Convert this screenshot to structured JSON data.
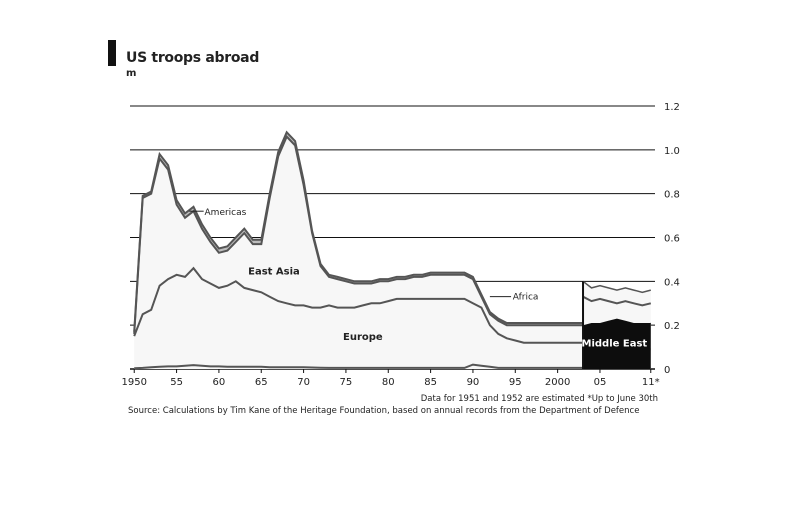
{
  "chart_data": {
    "type": "area",
    "title": "US troops abroad",
    "unit": "m",
    "x": [
      1950,
      1951,
      1952,
      1953,
      1954,
      1955,
      1956,
      1957,
      1958,
      1959,
      1960,
      1961,
      1962,
      1963,
      1964,
      1965,
      1966,
      1967,
      1968,
      1969,
      1970,
      1971,
      1972,
      1973,
      1974,
      1975,
      1976,
      1977,
      1978,
      1979,
      1980,
      1981,
      1982,
      1983,
      1984,
      1985,
      1986,
      1987,
      1988,
      1989,
      1990,
      1991,
      1992,
      1993,
      1994,
      1995,
      1996,
      1997,
      1998,
      1999,
      2000,
      2001,
      2002,
      2003,
      2004,
      2005,
      2006,
      2007,
      2008,
      2009,
      2010,
      2011
    ],
    "xlim": [
      1949.5,
      2011.5
    ],
    "ylim": [
      0,
      1.2
    ],
    "xticks": [
      {
        "v": 1950,
        "label": "1950"
      },
      {
        "v": 1955,
        "label": "55"
      },
      {
        "v": 1960,
        "label": "60"
      },
      {
        "v": 1965,
        "label": "65"
      },
      {
        "v": 1970,
        "label": "70"
      },
      {
        "v": 1975,
        "label": "75"
      },
      {
        "v": 1980,
        "label": "80"
      },
      {
        "v": 1985,
        "label": "85"
      },
      {
        "v": 1990,
        "label": "90"
      },
      {
        "v": 1995,
        "label": "95"
      },
      {
        "v": 2000,
        "label": "2000"
      },
      {
        "v": 2005,
        "label": "05"
      },
      {
        "v": 2011,
        "label": "11*"
      }
    ],
    "yticks": [
      {
        "v": 0,
        "label": "0"
      },
      {
        "v": 0.2,
        "label": "0.2"
      },
      {
        "v": 0.4,
        "label": "0.4"
      },
      {
        "v": 0.6,
        "label": "0.6"
      },
      {
        "v": 0.8,
        "label": "0.8"
      },
      {
        "v": 1.0,
        "label": "1.0"
      },
      {
        "v": 1.2,
        "label": "1.2"
      }
    ],
    "grid": true,
    "series_cumulative": [
      {
        "name": "Africa",
        "values": [
          0.003,
          0.005,
          0.008,
          0.01,
          0.012,
          0.012,
          0.015,
          0.018,
          0.015,
          0.012,
          0.012,
          0.01,
          0.01,
          0.01,
          0.01,
          0.01,
          0.008,
          0.008,
          0.008,
          0.008,
          0.008,
          0.007,
          0.006,
          0.005,
          0.005,
          0.005,
          0.005,
          0.005,
          0.005,
          0.005,
          0.005,
          0.005,
          0.005,
          0.005,
          0.005,
          0.005,
          0.005,
          0.005,
          0.005,
          0.005,
          0.02,
          0.015,
          0.01,
          0.005,
          0.005,
          0.005,
          0.005,
          0.005,
          0.005,
          0.005,
          0.005,
          0.005,
          0.005,
          0.005,
          0.005,
          0.005,
          0.005,
          0.005,
          0.005,
          0.005,
          0.005,
          0.005
        ]
      },
      {
        "name": "Europe",
        "values": [
          0.15,
          0.25,
          0.27,
          0.38,
          0.41,
          0.43,
          0.42,
          0.46,
          0.41,
          0.39,
          0.37,
          0.38,
          0.4,
          0.37,
          0.36,
          0.35,
          0.33,
          0.31,
          0.3,
          0.29,
          0.29,
          0.28,
          0.28,
          0.29,
          0.28,
          0.28,
          0.28,
          0.29,
          0.3,
          0.3,
          0.31,
          0.32,
          0.32,
          0.32,
          0.32,
          0.32,
          0.32,
          0.32,
          0.32,
          0.32,
          0.3,
          0.28,
          0.2,
          0.16,
          0.14,
          0.13,
          0.12,
          0.12,
          0.12,
          0.12,
          0.12,
          0.12,
          0.12,
          0.12,
          0.11,
          0.11,
          0.1,
          0.1,
          0.1,
          0.09,
          0.09,
          0.09
        ]
      },
      {
        "name": "East Asia",
        "values": [
          0.16,
          0.78,
          0.8,
          0.96,
          0.91,
          0.75,
          0.69,
          0.72,
          0.64,
          0.58,
          0.53,
          0.54,
          0.58,
          0.62,
          0.57,
          0.57,
          0.78,
          0.97,
          1.06,
          1.02,
          0.84,
          0.62,
          0.47,
          0.42,
          0.41,
          0.4,
          0.39,
          0.39,
          0.39,
          0.4,
          0.4,
          0.41,
          0.41,
          0.42,
          0.42,
          0.43,
          0.43,
          0.43,
          0.43,
          0.43,
          0.41,
          0.33,
          0.25,
          0.22,
          0.2,
          0.2,
          0.2,
          0.2,
          0.2,
          0.2,
          0.2,
          0.2,
          0.2,
          0.2,
          0.2,
          0.2,
          0.2,
          0.2,
          0.2,
          0.2,
          0.2,
          0.2
        ]
      },
      {
        "name": "Americas",
        "values": [
          0.17,
          0.79,
          0.81,
          0.98,
          0.93,
          0.77,
          0.71,
          0.74,
          0.66,
          0.6,
          0.55,
          0.56,
          0.6,
          0.64,
          0.59,
          0.59,
          0.8,
          0.99,
          1.08,
          1.04,
          0.86,
          0.63,
          0.48,
          0.43,
          0.42,
          0.41,
          0.4,
          0.4,
          0.4,
          0.41,
          0.41,
          0.42,
          0.42,
          0.43,
          0.43,
          0.44,
          0.44,
          0.44,
          0.44,
          0.44,
          0.42,
          0.34,
          0.26,
          0.23,
          0.21,
          0.21,
          0.21,
          0.21,
          0.21,
          0.21,
          0.21,
          0.21,
          0.21,
          0.21,
          0.21,
          0.21,
          0.21,
          0.21,
          0.21,
          0.21,
          0.21,
          0.21
        ]
      },
      {
        "name": "Middle East",
        "x": [
          2003,
          2004,
          2005,
          2006,
          2007,
          2008,
          2009,
          2010,
          2011
        ],
        "values": [
          0.2,
          0.21,
          0.21,
          0.22,
          0.23,
          0.22,
          0.21,
          0.21,
          0.21
        ]
      },
      {
        "name": "",
        "x": [
          2003,
          2004,
          2005,
          2006,
          2007,
          2008,
          2009,
          2010,
          2011
        ],
        "values": [
          0.33,
          0.31,
          0.32,
          0.31,
          0.3,
          0.31,
          0.3,
          0.29,
          0.3
        ]
      },
      {
        "name": "",
        "x": [
          2003,
          2004,
          2005,
          2006,
          2007,
          2008,
          2009,
          2010,
          2011
        ],
        "values": [
          0.4,
          0.37,
          0.38,
          0.37,
          0.36,
          0.37,
          0.36,
          0.35,
          0.36
        ]
      }
    ],
    "labels": {
      "americas": "Americas",
      "east_asia": "East Asia",
      "africa": "Africa",
      "europe": "Europe",
      "middle_east": "Middle East"
    },
    "note": "Data for 1951 and 1952 are estimated    *Up to June 30th",
    "source": "Source: Calculations by Tim Kane of the Heritage Foundation, based on annual records from the Department of Defence"
  },
  "colors": {
    "fill": "#f7f7f7",
    "line": "#555555",
    "grid": "#111111",
    "middle_east": "#0d0d0d",
    "title_bar": "#111111"
  }
}
